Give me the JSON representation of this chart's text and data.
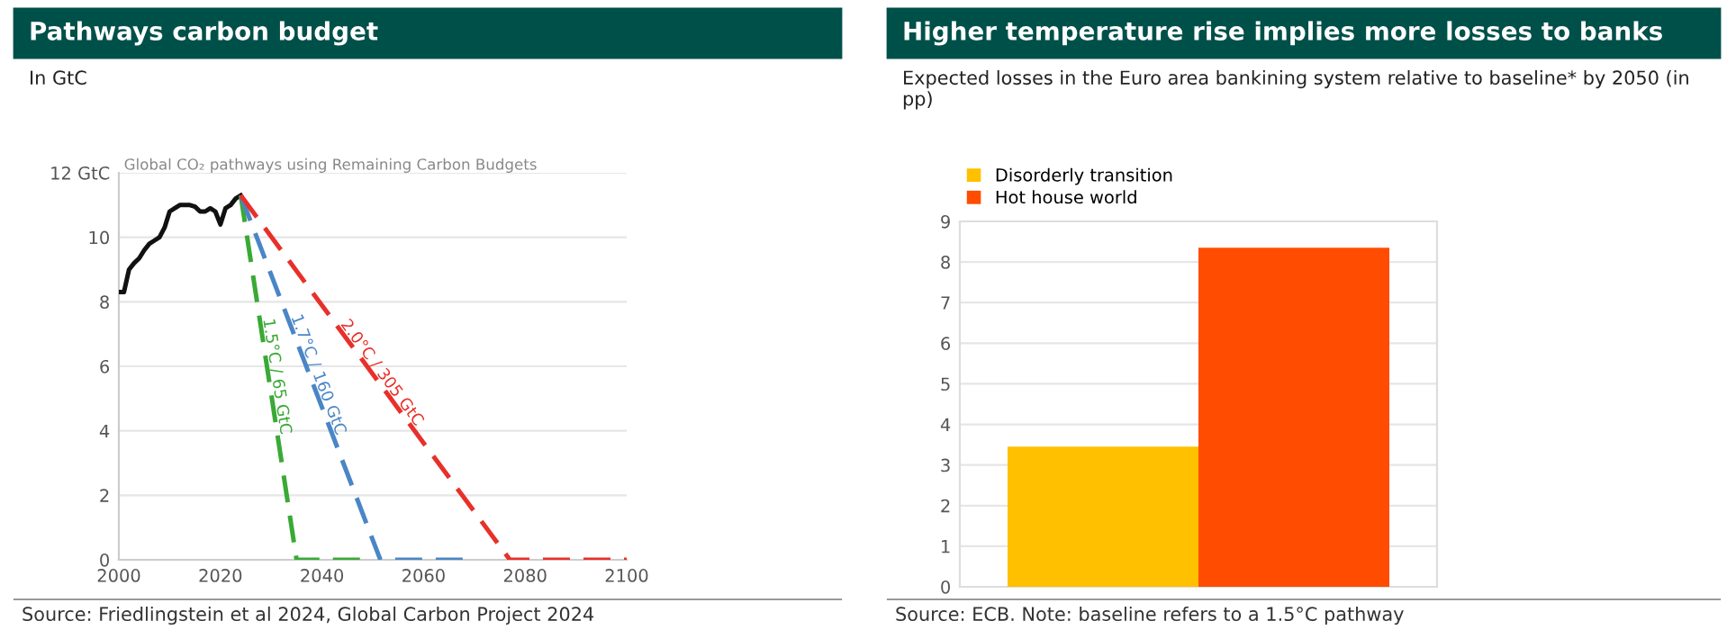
{
  "chart_data": [
    {
      "type": "line",
      "title": "Pathways carbon budget",
      "subtitle": "In GtC",
      "annotations": [
        "Global CO₂ pathways using Remaining Carbon Budgets",
        "Source: Friedlingstein et al 2024, Global Carbon Project 2024"
      ],
      "series": [
        {
          "color": "#111111",
          "line_style": "solid",
          "x": [
            2000,
            2001,
            2002,
            2003,
            2004,
            2005,
            2006,
            2007,
            2008,
            2009,
            2010,
            2011,
            2012,
            2013,
            2014,
            2015,
            2016,
            2017,
            2018,
            2019,
            2020,
            2021,
            2022,
            2023,
            2024
          ],
          "values": [
            8.3,
            8.3,
            9.0,
            9.2,
            9.35,
            9.6,
            9.8,
            9.9,
            10.0,
            10.3,
            10.8,
            10.9,
            11.0,
            11.0,
            11.0,
            10.95,
            10.8,
            10.8,
            10.9,
            10.8,
            10.4,
            10.9,
            11.0,
            11.2,
            11.3
          ]
        },
        {
          "name": "1.5°C / 65 GtC",
          "color": "#3aa935",
          "line_style": "dashed",
          "x": [
            2024,
            2035,
            2050
          ],
          "values": [
            11.3,
            0,
            0
          ]
        },
        {
          "name": "1.7°C / 160 GtC",
          "color": "#4a86c5",
          "line_style": "dashed",
          "x": [
            2024,
            2051.5,
            2070
          ],
          "values": [
            11.3,
            0,
            0
          ]
        },
        {
          "name": "2.0°C / 305 GtC",
          "color": "#e8302a",
          "line_style": "dashed",
          "x": [
            2024,
            2077,
            2100
          ],
          "values": [
            11.3,
            0,
            0
          ]
        }
      ],
      "xlim": [
        2000,
        2100
      ],
      "xticks": [
        2000,
        2020,
        2040,
        2060,
        2080,
        2100
      ],
      "ylim": [
        0,
        12
      ],
      "yticks": [
        0,
        2,
        4,
        6,
        8,
        10,
        {
          "value": 12,
          "label": "12 GtC"
        }
      ],
      "grid": "y"
    },
    {
      "type": "bar",
      "title": "Higher temperature rise implies more losses to banks",
      "subtitle": "Expected losses in the Euro area bankining system relative to baseline* by 2050 (in pp)",
      "annotations": [
        "Source: ECB. Note: baseline refers to a 1.5°C pathway"
      ],
      "categories": [
        null
      ],
      "series": [
        {
          "name": "Disorderly transition",
          "color": "#ffc000",
          "values": [
            3.45
          ]
        },
        {
          "name": "Hot house world",
          "color": "#ff4c00",
          "values": [
            8.35
          ]
        }
      ],
      "ylim": [
        0,
        9
      ],
      "yticks": [
        0,
        1,
        2,
        3,
        4,
        5,
        6,
        7,
        8,
        9
      ],
      "grid": "y",
      "legend": "top left"
    }
  ]
}
